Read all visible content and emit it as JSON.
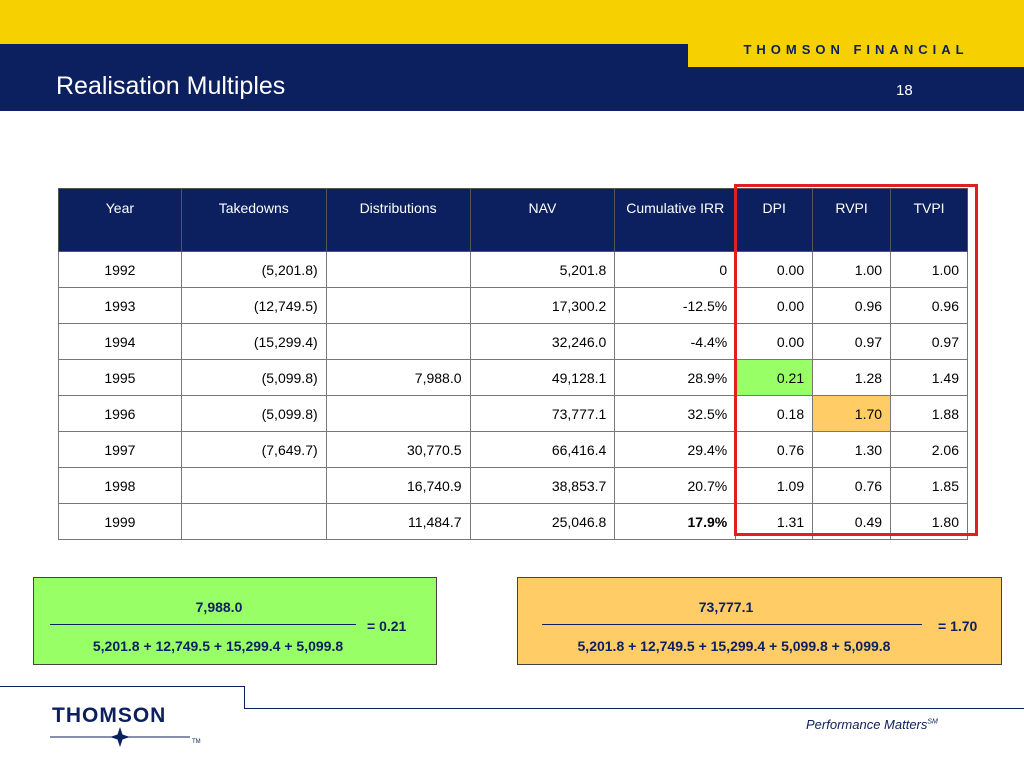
{
  "header": {
    "brand": "THOMSON FINANCIAL",
    "title": "Realisation Multiples",
    "page_number": "18"
  },
  "table": {
    "columns": [
      "Year",
      "Takedowns",
      "Distributions",
      "NAV",
      "Cumulative IRR",
      "DPI",
      "RVPI",
      "TVPI"
    ],
    "rows": [
      [
        "1992",
        "(5,201.8)",
        "",
        "5,201.8",
        "0",
        "0.00",
        "1.00",
        "1.00"
      ],
      [
        "1993",
        "(12,749.5)",
        "",
        "17,300.2",
        "-12.5%",
        "0.00",
        "0.96",
        "0.96"
      ],
      [
        "1994",
        "(15,299.4)",
        "",
        "32,246.0",
        "-4.4%",
        "0.00",
        "0.97",
        "0.97"
      ],
      [
        "1995",
        "(5,099.8)",
        "7,988.0",
        "49,128.1",
        "28.9%",
        "0.21",
        "1.28",
        "1.49"
      ],
      [
        "1996",
        "(5,099.8)",
        "",
        "73,777.1",
        "32.5%",
        "0.18",
        "1.70",
        "1.88"
      ],
      [
        "1997",
        "(7,649.7)",
        "30,770.5",
        "66,416.4",
        "29.4%",
        "0.76",
        "1.30",
        "2.06"
      ],
      [
        "1998",
        "",
        "16,740.9",
        "38,853.7",
        "20.7%",
        "1.09",
        "0.76",
        "1.85"
      ],
      [
        "1999",
        "",
        "11,484.7",
        "25,046.8",
        "17.9%",
        "1.31",
        "0.49",
        "1.80"
      ]
    ]
  },
  "formulas": {
    "dpi": {
      "numerator": "7,988.0",
      "denominator": "5,201.8 + 12,749.5 + 15,299.4 + 5,099.8",
      "result": "= 0.21"
    },
    "rvpi": {
      "numerator": "73,777.1",
      "denominator": "5,201.8 + 12,749.5 + 15,299.4 + 5,099.8 + 5,099.8",
      "result": "= 1.70"
    }
  },
  "footer": {
    "logo": "THOMSON",
    "trademark": "TM",
    "tagline": "Performance Matters",
    "tagline_mark": "SM"
  },
  "colors": {
    "navy": "#0c1f5e",
    "yellow": "#f7d000",
    "highlight_green": "#99ff66",
    "highlight_orange": "#ffcc66",
    "outline_red": "#e02020"
  }
}
